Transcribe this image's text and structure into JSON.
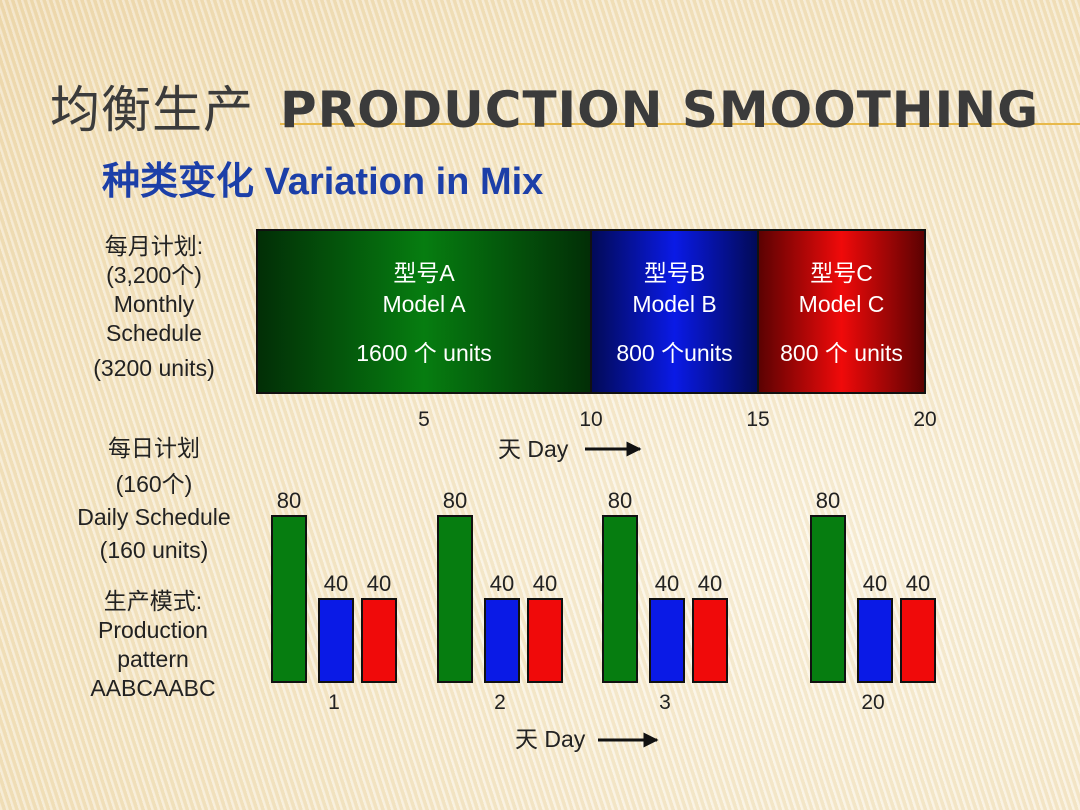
{
  "title": {
    "cn": "均衡生产",
    "en": "PRODUCTION SMOOTHING"
  },
  "subtitle": "种类变化 Variation in Mix",
  "monthly_label": [
    "每月计划:",
    "(3,200个)",
    "Monthly",
    "Schedule",
    "(3200 units)"
  ],
  "daily_label": [
    "每日计划",
    "(160个)",
    "Daily Schedule",
    "(160 units)"
  ],
  "pattern_label": [
    "生产模式:",
    "Production",
    "pattern",
    "AABCAABC"
  ],
  "colors": {
    "A": "#067d10",
    "B": "#0a1ae6",
    "C": "#f00a0a"
  },
  "chart_data": [
    {
      "type": "bar",
      "orientation": "horizontal-stacked",
      "segments": [
        {
          "name_cn": "型号A",
          "name_en": "Model A",
          "units_label": "1600 个 units",
          "value": 1600,
          "days": [
            0,
            10
          ]
        },
        {
          "name_cn": "型号B",
          "name_en": "Model B",
          "units_label": "800  个units",
          "value": 800,
          "days": [
            10,
            15
          ]
        },
        {
          "name_cn": "型号C",
          "name_en": "Model C",
          "units_label": "800 个 units",
          "value": 800,
          "days": [
            15,
            20
          ]
        }
      ],
      "x_ticks": [
        "5",
        "10",
        "15",
        "20"
      ],
      "xlim": [
        0,
        20
      ],
      "xlabel": "天 Day"
    },
    {
      "type": "bar",
      "categories": [
        "1",
        "2",
        "3",
        "20"
      ],
      "series": [
        {
          "values": [
            80,
            80,
            80,
            80
          ]
        },
        {
          "values": [
            40,
            40,
            40,
            40
          ]
        },
        {
          "values": [
            40,
            40,
            40,
            40
          ]
        }
      ],
      "xlabel": "天 Day",
      "ylim": [
        0,
        80
      ]
    }
  ]
}
